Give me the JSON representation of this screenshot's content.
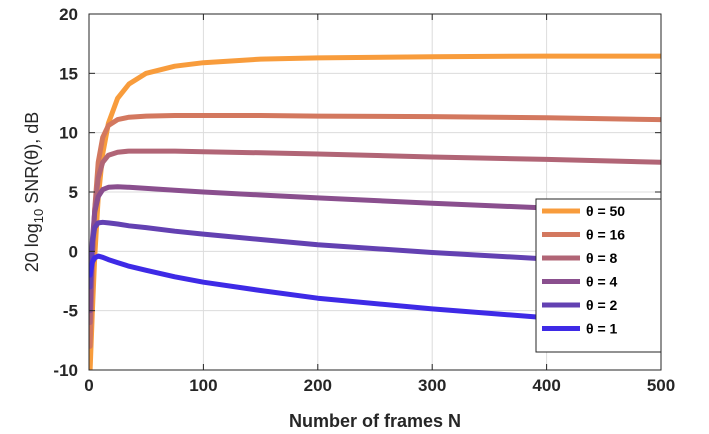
{
  "chart_data": {
    "type": "line",
    "xlabel": "Number of frames N",
    "ylabel": {
      "base": "20 log",
      "subscript": "10",
      "rest": " SNR(θ), dB"
    },
    "xlim": [
      0,
      500
    ],
    "ylim": [
      -10,
      20
    ],
    "xticks": [
      0,
      100,
      200,
      300,
      400,
      500
    ],
    "yticks": [
      -10,
      -5,
      0,
      5,
      10,
      15,
      20
    ],
    "grid": true,
    "legend_position": "bottom-right",
    "series": [
      {
        "name": "θ = 50",
        "color": "#F89C3C",
        "x": [
          1,
          3,
          5,
          8,
          12,
          17,
          25,
          35,
          50,
          75,
          100,
          150,
          200,
          300,
          400,
          500
        ],
        "y": [
          -10,
          -5,
          -0.5,
          4.5,
          8.2,
          10.8,
          12.9,
          14.1,
          15.0,
          15.6,
          15.9,
          16.2,
          16.3,
          16.4,
          16.45,
          16.45
        ]
      },
      {
        "name": "θ = 16",
        "color": "#D3785F",
        "x": [
          1,
          3,
          5,
          8,
          12,
          17,
          25,
          35,
          50,
          75,
          100,
          150,
          200,
          300,
          400,
          500
        ],
        "y": [
          -8,
          -1.5,
          3.5,
          7.5,
          9.6,
          10.6,
          11.1,
          11.3,
          11.4,
          11.45,
          11.45,
          11.45,
          11.4,
          11.35,
          11.25,
          11.1
        ]
      },
      {
        "name": "θ = 8",
        "color": "#B16576",
        "x": [
          1,
          3,
          5,
          8,
          12,
          17,
          25,
          35,
          50,
          75,
          100,
          150,
          200,
          300,
          400,
          500
        ],
        "y": [
          -6,
          0,
          3.5,
          6.2,
          7.5,
          8.1,
          8.35,
          8.45,
          8.45,
          8.45,
          8.4,
          8.3,
          8.2,
          7.95,
          7.75,
          7.5
        ]
      },
      {
        "name": "θ = 4",
        "color": "#8A4F8E",
        "x": [
          1,
          3,
          5,
          8,
          12,
          17,
          25,
          35,
          50,
          75,
          100,
          150,
          200,
          300,
          400,
          500
        ],
        "y": [
          -5,
          1,
          3.3,
          4.6,
          5.2,
          5.4,
          5.45,
          5.4,
          5.3,
          5.15,
          5.0,
          4.75,
          4.5,
          4.05,
          3.65,
          3.35
        ]
      },
      {
        "name": "θ = 2",
        "color": "#6341B2",
        "x": [
          1,
          3,
          5,
          8,
          12,
          17,
          25,
          35,
          50,
          75,
          100,
          150,
          200,
          300,
          400,
          500
        ],
        "y": [
          -3,
          0.8,
          2.0,
          2.4,
          2.45,
          2.4,
          2.3,
          2.15,
          2.0,
          1.7,
          1.45,
          1.0,
          0.55,
          -0.1,
          -0.65,
          -1.15
        ]
      },
      {
        "name": "θ = 1",
        "color": "#3E2AE6",
        "x": [
          1,
          3,
          5,
          8,
          12,
          17,
          25,
          35,
          50,
          75,
          100,
          150,
          200,
          300,
          400,
          500
        ],
        "y": [
          -2,
          -0.9,
          -0.55,
          -0.4,
          -0.5,
          -0.7,
          -0.95,
          -1.25,
          -1.6,
          -2.15,
          -2.6,
          -3.3,
          -3.95,
          -4.85,
          -5.6,
          -6.2
        ]
      }
    ]
  }
}
